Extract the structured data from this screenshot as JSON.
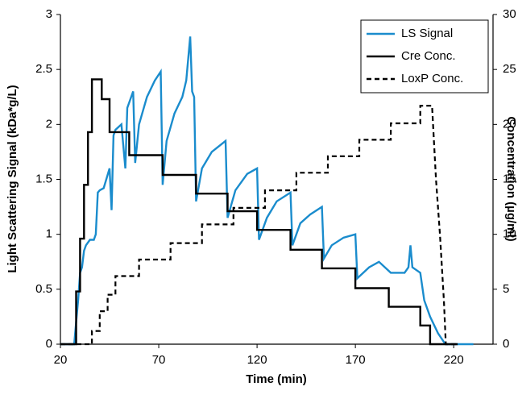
{
  "chart_data": {
    "type": "line",
    "x_label": "Time (min)",
    "y_label": "Light Scattering Signal (kDa*g/L)",
    "y2_label": "Concentration (µg/ml)",
    "xlim": [
      20,
      240
    ],
    "xticks": [
      20,
      70,
      120,
      170,
      220
    ],
    "ylim": [
      0,
      3
    ],
    "yticks": [
      0,
      0.5,
      1,
      1.5,
      2,
      2.5,
      3
    ],
    "y2lim": [
      0,
      30
    ],
    "y2ticks": [
      0,
      5,
      10,
      15,
      20,
      25,
      30
    ],
    "y_color": "#1a8ccd",
    "legend": "upper-right",
    "series": [
      {
        "name": "LS Signal",
        "color": "#1a8ccd",
        "dash": false,
        "x": [
          20,
          27,
          28,
          29,
          30,
          31,
          32,
          33,
          35,
          37,
          38,
          39,
          40,
          42,
          45,
          46,
          47,
          48,
          51,
          53,
          54,
          57,
          58,
          60,
          64,
          68,
          71,
          72,
          74,
          78,
          82,
          84,
          86,
          87,
          88,
          89,
          92,
          97,
          104,
          105,
          109,
          115,
          120,
          121,
          125,
          130,
          137,
          138,
          142,
          147,
          153,
          154,
          158,
          164,
          170,
          171,
          177,
          182,
          188,
          195,
          197,
          198,
          199,
          203,
          205,
          208,
          212,
          215,
          216,
          230
        ],
        "values": [
          0,
          0,
          0.2,
          0.4,
          0.65,
          0.7,
          0.85,
          0.9,
          0.95,
          0.95,
          1.0,
          1.38,
          1.4,
          1.42,
          1.6,
          1.22,
          1.9,
          1.95,
          2.0,
          1.6,
          2.15,
          2.3,
          1.65,
          2.0,
          2.25,
          2.4,
          2.48,
          1.45,
          1.85,
          2.1,
          2.25,
          2.4,
          2.8,
          2.3,
          2.25,
          1.3,
          1.6,
          1.75,
          1.85,
          1.15,
          1.4,
          1.55,
          1.6,
          0.95,
          1.15,
          1.3,
          1.38,
          0.9,
          1.1,
          1.18,
          1.25,
          0.78,
          0.9,
          0.97,
          1.0,
          0.6,
          0.7,
          0.75,
          0.65,
          0.65,
          0.7,
          0.9,
          0.7,
          0.65,
          0.4,
          0.25,
          0.1,
          0.02,
          0,
          0
        ]
      },
      {
        "name": "Cre Conc.",
        "color": "#000000",
        "dash": false,
        "axis": "y2",
        "x": [
          20,
          28,
          28,
          30,
          30,
          32,
          32,
          34,
          34,
          36,
          36,
          41,
          41,
          45,
          45,
          55,
          55,
          72,
          72,
          89,
          89,
          105,
          105,
          120,
          120,
          137,
          137,
          153,
          153,
          170,
          170,
          187,
          187,
          203,
          203,
          208,
          208,
          222
        ],
        "values": [
          0,
          0,
          4.8,
          4.8,
          9.6,
          9.6,
          14.5,
          14.5,
          19.3,
          19.3,
          24.1,
          24.1,
          22.3,
          22.3,
          19.3,
          19.3,
          17.2,
          17.2,
          15.4,
          15.4,
          13.7,
          13.7,
          12.1,
          12.1,
          10.4,
          10.4,
          8.6,
          8.6,
          6.9,
          6.9,
          5.1,
          5.1,
          3.4,
          3.4,
          1.7,
          1.7,
          0,
          0
        ]
      },
      {
        "name": "LoxP Conc.",
        "color": "#000000",
        "dash": true,
        "axis": "y2",
        "x": [
          20,
          36,
          36,
          40,
          40,
          44,
          44,
          48,
          48,
          60,
          60,
          76,
          76,
          92,
          92,
          108,
          108,
          124,
          124,
          140,
          140,
          156,
          156,
          172,
          172,
          188,
          188,
          203,
          203,
          209,
          211,
          213,
          215,
          216,
          218,
          222
        ],
        "values": [
          0,
          0,
          1.2,
          1.2,
          3,
          3,
          4.5,
          4.5,
          6.2,
          6.2,
          7.7,
          7.7,
          9.2,
          9.2,
          10.9,
          10.9,
          12.4,
          12.4,
          14,
          14,
          15.6,
          15.6,
          17.1,
          17.1,
          18.6,
          18.6,
          20.1,
          20.1,
          21.7,
          21.7,
          15,
          10,
          4,
          0,
          0,
          0
        ]
      }
    ]
  }
}
